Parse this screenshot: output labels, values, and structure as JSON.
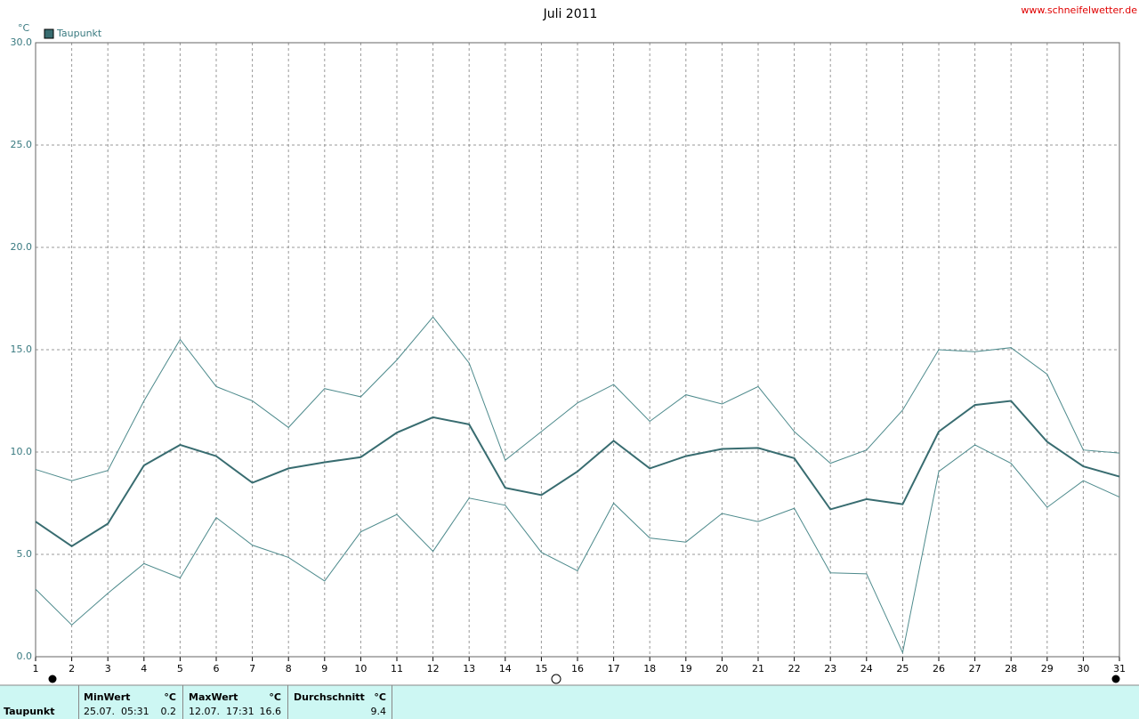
{
  "chart_data": {
    "type": "line",
    "title": "Juli 2011",
    "source": "www.schneifelwetter.de",
    "y_unit": "°C",
    "x": [
      1,
      2,
      3,
      4,
      5,
      6,
      7,
      8,
      9,
      10,
      11,
      12,
      13,
      14,
      15,
      16,
      17,
      18,
      19,
      20,
      21,
      22,
      23,
      24,
      25,
      26,
      27,
      28,
      29,
      30,
      31
    ],
    "xlim": [
      1,
      31
    ],
    "xticks": [
      1,
      2,
      3,
      4,
      5,
      6,
      7,
      8,
      9,
      10,
      11,
      12,
      13,
      14,
      15,
      16,
      17,
      18,
      19,
      20,
      21,
      22,
      23,
      24,
      25,
      26,
      27,
      28,
      29,
      30,
      31
    ],
    "ylim": [
      0,
      30
    ],
    "yticks": [
      {
        "value": 0,
        "label": "0.0"
      },
      {
        "value": 5,
        "label": "5.0"
      },
      {
        "value": 10,
        "label": "10.0"
      },
      {
        "value": 15,
        "label": "15.0"
      },
      {
        "value": 20,
        "label": "20.0"
      },
      {
        "value": 25,
        "label": "25.0"
      },
      {
        "value": 30,
        "label": "30.0"
      }
    ],
    "grid": true,
    "legend": "top-left",
    "series": [
      {
        "name": "Taupunkt",
        "color": "#386c70",
        "width": 2,
        "values": [
          6.6,
          5.4,
          6.5,
          9.35,
          10.35,
          9.8,
          8.5,
          9.2,
          9.5,
          9.75,
          10.95,
          11.7,
          11.35,
          8.25,
          7.9,
          9.05,
          10.55,
          9.2,
          9.8,
          10.15,
          10.2,
          9.7,
          7.2,
          7.7,
          7.45,
          11.0,
          12.3,
          12.5,
          10.5,
          9.3,
          8.8
        ]
      },
      {
        "color": "#4d8a8c",
        "width": 1,
        "values": [
          9.15,
          8.6,
          9.1,
          12.5,
          15.5,
          13.2,
          12.5,
          11.2,
          13.1,
          12.7,
          14.5,
          16.6,
          14.35,
          9.6,
          11.0,
          12.4,
          13.3,
          11.5,
          12.8,
          12.35,
          13.2,
          11.0,
          9.45,
          10.1,
          12.05,
          15.0,
          14.9,
          15.1,
          13.8,
          10.1,
          9.95
        ]
      },
      {
        "color": "#4d8a8c",
        "width": 1,
        "values": [
          3.3,
          1.55,
          3.1,
          4.55,
          3.85,
          6.8,
          5.45,
          4.85,
          3.7,
          6.1,
          6.95,
          5.15,
          7.75,
          7.4,
          5.1,
          4.2,
          7.5,
          5.8,
          5.6,
          7.0,
          6.6,
          7.25,
          4.1,
          4.05,
          0.2,
          9.05,
          10.35,
          9.45,
          7.3,
          8.6,
          7.8
        ]
      }
    ]
  },
  "table": {
    "header": [
      "MinWert",
      "°C",
      "MaxWert",
      "°C",
      "Durchschnitt",
      "°C"
    ],
    "rows": [
      [
        "Taupunkt",
        "25.07.  05:31",
        "0.2",
        "12.07.  17:31",
        "16.6",
        "9.4"
      ]
    ]
  }
}
